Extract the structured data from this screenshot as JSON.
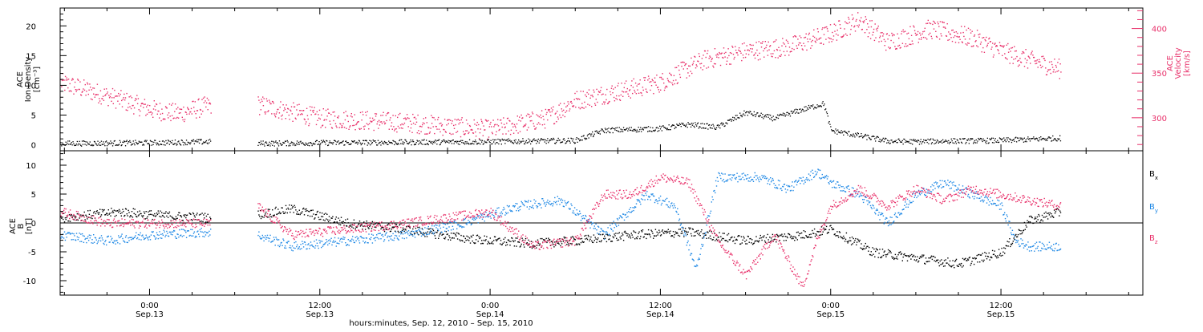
{
  "colors": {
    "density": "#000000",
    "velocity": "#e8306a",
    "bx": "#000000",
    "by": "#1e88e5",
    "bz": "#e8306a"
  },
  "chart_data": [
    {
      "type": "scatter",
      "ylabel_left": [
        "ACE",
        "Ion Density",
        "[cm⁻³]"
      ],
      "ylabel_right": [
        "ACE",
        "Velocity",
        "[km/s]"
      ],
      "x_range_hours": [
        -6.3,
        70.0
      ],
      "y_left_range": [
        -1,
        23
      ],
      "y_left_ticks": [
        0,
        5,
        10,
        15,
        20
      ],
      "y_left_tick_labels": [
        "0",
        "5",
        "10",
        "15",
        "20"
      ],
      "y_right_range": [
        263,
        423
      ],
      "y_right_ticks": [
        300,
        350,
        400
      ],
      "y_right_tick_labels": [
        "300",
        "350",
        "400"
      ],
      "data_gaps_hours": [
        [
          4.3,
          7.6
        ]
      ],
      "data_end_hour": 64.2,
      "series": [
        {
          "name": "Ion Density",
          "axis": "left",
          "x": [
            -6.3,
            0,
            4.3,
            7.6,
            12,
            18,
            24,
            30,
            32,
            36,
            38,
            40,
            42,
            44,
            46,
            47.5,
            48,
            52,
            54,
            56,
            60,
            64.2
          ],
          "y": [
            0.3,
            0.4,
            0.6,
            0.3,
            0.4,
            0.5,
            0.6,
            0.8,
            2.5,
            2.8,
            3.5,
            3.0,
            5.5,
            4.5,
            6.0,
            7.0,
            2.5,
            0.7,
            0.6,
            0.7,
            0.8,
            1.2
          ]
        },
        {
          "name": "Velocity",
          "axis": "right",
          "x": [
            -6.3,
            -3,
            0,
            2,
            4.3,
            7.6,
            12,
            18,
            24,
            28,
            30,
            33,
            36,
            39,
            42,
            45,
            48,
            50,
            52,
            55,
            58,
            60,
            62,
            64.2
          ],
          "y": [
            340,
            325,
            310,
            305,
            315,
            315,
            300,
            295,
            287,
            300,
            320,
            330,
            340,
            365,
            375,
            380,
            395,
            410,
            385,
            400,
            390,
            375,
            365,
            355
          ]
        }
      ]
    },
    {
      "type": "scatter",
      "ylabel": [
        "ACE",
        "B",
        "[nT]"
      ],
      "x_range_hours": [
        -6.3,
        70.0
      ],
      "y_range": [
        -12.5,
        12.5
      ],
      "y_ticks": [
        -10,
        -5,
        0,
        5,
        10
      ],
      "y_tick_labels": [
        "-10",
        "-5",
        "0",
        "5",
        "10"
      ],
      "x_tick_hours": [
        0,
        12,
        24,
        36,
        48,
        60
      ],
      "x_tick_labels": [
        [
          "0:00",
          "Sep.13"
        ],
        [
          "12:00",
          "Sep.13"
        ],
        [
          "0:00",
          "Sep.14"
        ],
        [
          "12:00",
          "Sep.14"
        ],
        [
          "0:00",
          "Sep.15"
        ],
        [
          "12:00",
          "Sep.15"
        ]
      ],
      "xlabel": "hours:minutes, Sep. 12, 2010 – Sep. 15, 2010",
      "legend_position": "right",
      "data_gaps_hours": [
        [
          4.3,
          7.6
        ]
      ],
      "data_end_hour": 64.2,
      "series": [
        {
          "name": "B",
          "sub": "x",
          "color": "#000000",
          "x": [
            -6.3,
            -2,
            0,
            2,
            4.3,
            7.6,
            10,
            14,
            18,
            22,
            24,
            27,
            30,
            34,
            38,
            42,
            46,
            48,
            51,
            54,
            57,
            60,
            62,
            64.2
          ],
          "y": [
            1.0,
            2.0,
            1.5,
            1.2,
            1.0,
            1.5,
            2.5,
            0.0,
            -1.0,
            -2.5,
            -3.0,
            -3.5,
            -3.0,
            -2.0,
            -1.5,
            -3.0,
            -2.0,
            -1.0,
            -5.0,
            -6.0,
            -7.0,
            -5.0,
            0.5,
            2.0
          ]
        },
        {
          "name": "B",
          "sub": "y",
          "color": "#1e88e5",
          "x": [
            -6.3,
            -3,
            0,
            4.3,
            7.6,
            10,
            14,
            18,
            22,
            26,
            29,
            32,
            35,
            37,
            38.5,
            40,
            43,
            45,
            47,
            48,
            50,
            52,
            54,
            56,
            58,
            60,
            61,
            62,
            64.2
          ],
          "y": [
            -2.0,
            -3.0,
            -2.0,
            -1.5,
            -2.0,
            -4.0,
            -3.0,
            -2.0,
            0.0,
            3.0,
            4.0,
            -2.0,
            5.0,
            3.0,
            -8.0,
            8.0,
            8.0,
            6.0,
            9.0,
            7.0,
            5.0,
            0.0,
            5.0,
            7.0,
            5.0,
            3.0,
            -3.0,
            -4.0,
            -4.0
          ]
        },
        {
          "name": "B",
          "sub": "z",
          "color": "#e8306a",
          "x": [
            -6.3,
            -3,
            0,
            4.3,
            7.6,
            10,
            14,
            18,
            21,
            24,
            27,
            30,
            32,
            34,
            36,
            38,
            40,
            42,
            44,
            46,
            47,
            48,
            50,
            52,
            54,
            56,
            58,
            60,
            62,
            64.2
          ],
          "y": [
            2.0,
            0.0,
            0.0,
            0.0,
            3.0,
            -2.0,
            -1.0,
            0.0,
            1.0,
            2.0,
            -4.0,
            -3.0,
            5.0,
            5.0,
            8.0,
            7.0,
            -3.0,
            -9.0,
            -2.0,
            -11.0,
            -3.0,
            3.0,
            6.0,
            3.0,
            6.0,
            4.0,
            6.0,
            5.0,
            4.0,
            3.0
          ]
        }
      ]
    }
  ]
}
